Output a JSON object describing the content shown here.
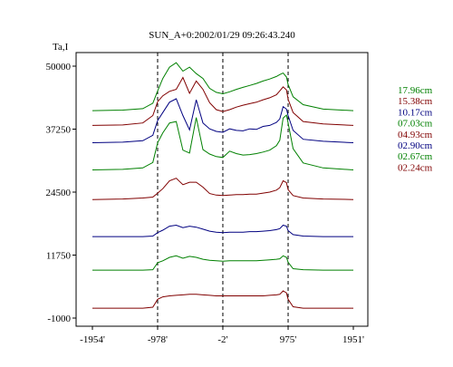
{
  "chart_data": {
    "type": "line",
    "title": "SUN_A+0:2002/01/29 09:26:43.240",
    "ylabel": "Ta,I",
    "xlabel": "",
    "xlim": [
      -1954,
      1951
    ],
    "ylim": [
      -1000,
      50000
    ],
    "x_ticks": [
      {
        "value": -1954,
        "label": "-1954'"
      },
      {
        "value": -978,
        "label": "-978'"
      },
      {
        "value": -2,
        "label": "-2'"
      },
      {
        "value": 975,
        "label": "975'"
      },
      {
        "value": 1951,
        "label": "1951'"
      }
    ],
    "y_ticks": [
      {
        "value": 50000,
        "label": "50000"
      },
      {
        "value": 37250,
        "label": "37250"
      },
      {
        "value": 24500,
        "label": "24500"
      },
      {
        "value": 11750,
        "label": "11750"
      },
      {
        "value": -1000,
        "label": "-1000"
      }
    ],
    "vlines": [
      -978,
      -2,
      975
    ],
    "grid": false,
    "legend_position": "right",
    "x_sample": [
      -1954,
      -1500,
      -1200,
      -1050,
      -978,
      -900,
      -800,
      -700,
      -600,
      -500,
      -400,
      -300,
      -200,
      -100,
      -2,
      100,
      200,
      300,
      400,
      500,
      600,
      700,
      800,
      850,
      900,
      950,
      975,
      1050,
      1200,
      1500,
      1951
    ],
    "series": [
      {
        "name": "17.96cm",
        "color": "#008000",
        "values": [
          41000,
          41100,
          41400,
          42500,
          45000,
          47500,
          49800,
          50700,
          49000,
          49800,
          48500,
          47500,
          45500,
          44700,
          44400,
          44800,
          45300,
          45700,
          46100,
          46500,
          47000,
          47400,
          47900,
          48300,
          48600,
          47800,
          46300,
          43800,
          42200,
          41300,
          41000
        ]
      },
      {
        "name": "15.38cm",
        "color": "#800000",
        "values": [
          38000,
          38100,
          38500,
          40000,
          42800,
          44000,
          44900,
          45300,
          47700,
          44500,
          47000,
          45300,
          42600,
          41200,
          40800,
          41200,
          41700,
          42100,
          42400,
          42700,
          43200,
          43600,
          44200,
          45000,
          45800,
          45200,
          43300,
          40600,
          38800,
          38300,
          38000
        ]
      },
      {
        "name": "10.17cm",
        "color": "#000080",
        "values": [
          34500,
          34600,
          34900,
          36000,
          39000,
          40600,
          42700,
          43400,
          40000,
          37100,
          43200,
          38500,
          37300,
          36800,
          36600,
          37300,
          37000,
          36900,
          37300,
          37200,
          37800,
          38000,
          38600,
          39300,
          41800,
          41300,
          40000,
          37000,
          35200,
          34800,
          34500
        ]
      },
      {
        "name": "07.03cm",
        "color": "#008000",
        "values": [
          29000,
          29100,
          29400,
          30500,
          34500,
          36500,
          38500,
          38800,
          33000,
          32400,
          39600,
          33100,
          32200,
          31700,
          31500,
          32800,
          32300,
          32000,
          32100,
          32300,
          32600,
          33000,
          33900,
          35000,
          39500,
          40100,
          38500,
          33300,
          30400,
          29400,
          29000
        ]
      },
      {
        "name": "04.93cm",
        "color": "#800000",
        "values": [
          23000,
          23100,
          23300,
          23500,
          24300,
          25200,
          26800,
          27300,
          26000,
          26500,
          26500,
          25500,
          24200,
          23900,
          23800,
          23900,
          24000,
          24000,
          24100,
          24100,
          24300,
          24500,
          24900,
          25400,
          26800,
          26400,
          25000,
          23800,
          23300,
          23100,
          23000
        ]
      },
      {
        "name": "02.90cm",
        "color": "#000080",
        "values": [
          15500,
          15500,
          15500,
          15600,
          16300,
          16800,
          17600,
          17800,
          17300,
          17600,
          17400,
          17000,
          16600,
          16400,
          16300,
          16400,
          16400,
          16400,
          16500,
          16500,
          16600,
          16700,
          16900,
          17100,
          17800,
          17600,
          16700,
          15900,
          15600,
          15500,
          15500
        ]
      },
      {
        "name": "02.67cm",
        "color": "#008000",
        "values": [
          8700,
          8700,
          8700,
          8800,
          10200,
          10600,
          11300,
          11600,
          11100,
          11500,
          11300,
          10900,
          10700,
          10600,
          10500,
          10600,
          10600,
          10600,
          10600,
          10600,
          10700,
          10800,
          10900,
          11000,
          11600,
          11300,
          10300,
          9000,
          8800,
          8700,
          8700
        ]
      },
      {
        "name": "02.24cm",
        "color": "#800000",
        "values": [
          1000,
          1000,
          1000,
          1200,
          2800,
          3300,
          3500,
          3600,
          3700,
          3800,
          3800,
          3700,
          3600,
          3500,
          3500,
          3500,
          3500,
          3500,
          3500,
          3500,
          3500,
          3600,
          3700,
          3800,
          4500,
          4100,
          2800,
          1300,
          1000,
          1000,
          1000
        ]
      }
    ]
  }
}
